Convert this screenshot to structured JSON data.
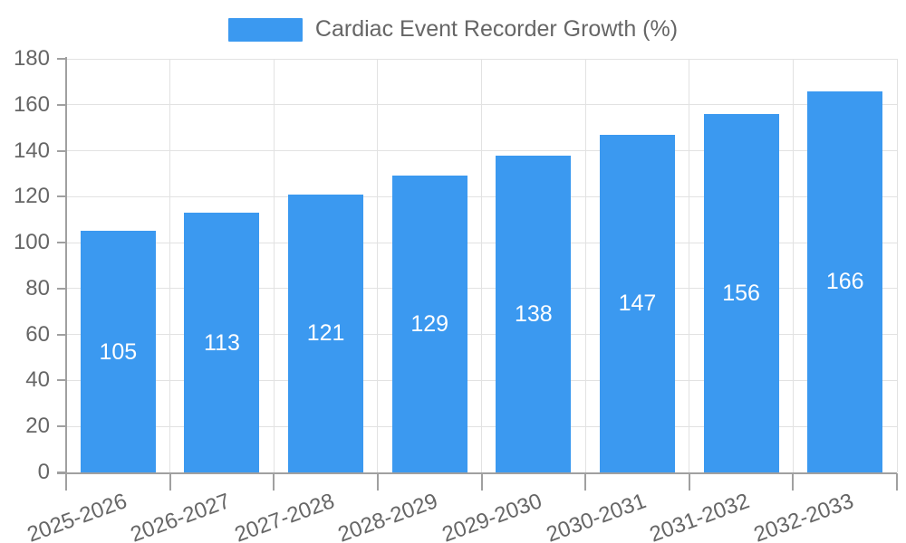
{
  "legend": {
    "label": "Cardiac Event Recorder Growth (%)"
  },
  "chart_data": {
    "type": "bar",
    "title": "",
    "xlabel": "",
    "ylabel": "",
    "legend_entries": [
      "Cardiac Event Recorder Growth (%)"
    ],
    "legend_position": "top-center",
    "categories": [
      "2025-2026",
      "2026-2027",
      "2027-2028",
      "2028-2029",
      "2029-2030",
      "2030-2031",
      "2031-2032",
      "2032-2033"
    ],
    "values": [
      105,
      113,
      121,
      129,
      138,
      147,
      156,
      166
    ],
    "ylim": [
      0,
      180
    ],
    "ytick_step": 20,
    "ytick_labels": [
      "0",
      "20",
      "40",
      "60",
      "80",
      "100",
      "120",
      "140",
      "160",
      "180"
    ],
    "grid": true,
    "bar_value_labels_inside": true,
    "xlabel_rotation_deg": -20
  },
  "colors": {
    "bar": "#3b99f0",
    "bar_value_text": "#ffffff",
    "grid": "#e2e2e2",
    "axis": "#a0a0a0",
    "tick_text": "#666666",
    "background": "#ffffff"
  }
}
